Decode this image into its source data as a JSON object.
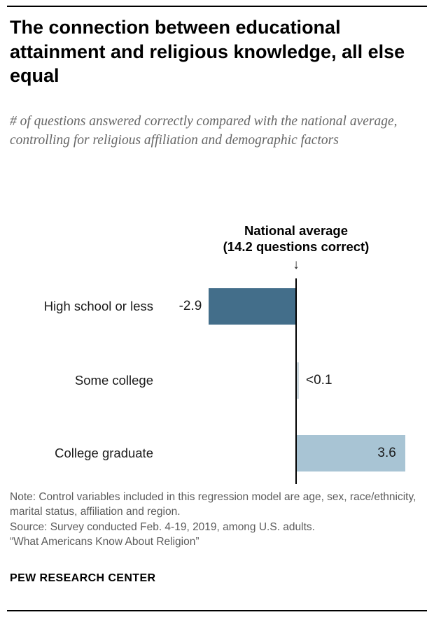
{
  "header": {
    "title": "The connection between educational attainment and religious knowledge, all else equal",
    "subtitle": "# of questions answered correctly compared with the national average, controlling for religious affiliation and demographic factors"
  },
  "chart_data": {
    "type": "bar",
    "orientation": "horizontal",
    "title": "The connection between educational attainment and religious knowledge, all else equal",
    "categories": [
      "High school or less",
      "Some college",
      "College graduate"
    ],
    "values": [
      -2.9,
      0.05,
      3.6
    ],
    "value_labels": [
      "-2.9",
      "<0.1",
      "3.6"
    ],
    "bar_colors": [
      "#436e8a",
      "#ccd8de",
      "#a8c4d4"
    ],
    "label_placement": [
      "left",
      "right",
      "inside"
    ],
    "xlim": [
      -3,
      4
    ],
    "grid": false,
    "legend": false,
    "reference_line": {
      "value": 14.2,
      "label_line1": "National average",
      "label_line2": "(14.2 questions correct)"
    }
  },
  "icons": {
    "down_arrow": "↓"
  },
  "footer": {
    "note": "Note: Control variables included in this regression model are age, sex, race/ethnicity, marital status, affiliation and region.",
    "source": "Source: Survey conducted Feb. 4-19, 2019, among U.S. adults.",
    "quote": "“What Americans Know About Religion”",
    "brand": "PEW RESEARCH CENTER"
  }
}
